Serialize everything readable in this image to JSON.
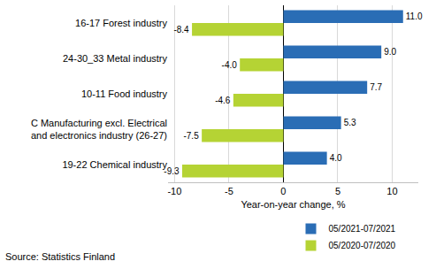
{
  "chart_data": {
    "type": "bar",
    "orientation": "horizontal",
    "categories": [
      "16-17 Forest industry",
      "24-30_33 Metal industry",
      "10-11 Food industry",
      "C Manufacturing excl. Electrical\nand electronics industry (26-27)",
      "19-22 Chemical industry"
    ],
    "series": [
      {
        "name": "05/2021-07/2021",
        "color": "#2a6db5",
        "values": [
          11.0,
          9.0,
          7.7,
          5.3,
          4.0
        ],
        "value_labels": [
          "11.0",
          "9.0",
          "7.7",
          "5.3",
          "4.0"
        ]
      },
      {
        "name": "05/2020-07/2020",
        "color": "#b5d334",
        "values": [
          -8.4,
          -4.0,
          -4.6,
          -7.5,
          -9.3
        ],
        "value_labels": [
          "-8.4",
          "-4.0",
          "-4.6",
          "-7.5",
          "-9.3"
        ]
      }
    ],
    "x_label": "Year-on-year change, %",
    "xlim": [
      -10.6,
      12.4
    ],
    "xticks": [
      -10,
      -5,
      0,
      5,
      10
    ],
    "grid": true,
    "data_labels": true,
    "legend": "bottom",
    "annotations": [
      "Source: Statistics Finland"
    ]
  }
}
